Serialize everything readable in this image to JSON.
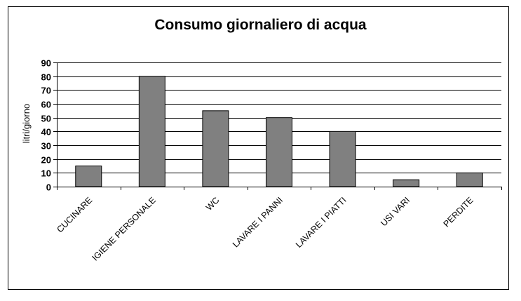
{
  "chart_data": {
    "type": "bar",
    "title": "Consumo giornaliero di acqua",
    "ylabel": "litri/giorno",
    "xlabel": "",
    "categories": [
      "CUCINARE",
      "IGIENE PERSONALE",
      "WC",
      "LAVARE I PANNI",
      "LAVARE I PIATTI",
      "USI VARI",
      "PERDITE"
    ],
    "values": [
      15,
      80,
      55,
      50,
      40,
      5,
      10
    ],
    "ylim": [
      0,
      90
    ],
    "yticks": [
      0,
      10,
      20,
      30,
      40,
      50,
      60,
      70,
      80,
      90
    ],
    "grid": true,
    "legend": "none",
    "colors": {
      "bar": "#808080",
      "bar_border": "#000000",
      "grid": "#000000"
    }
  }
}
